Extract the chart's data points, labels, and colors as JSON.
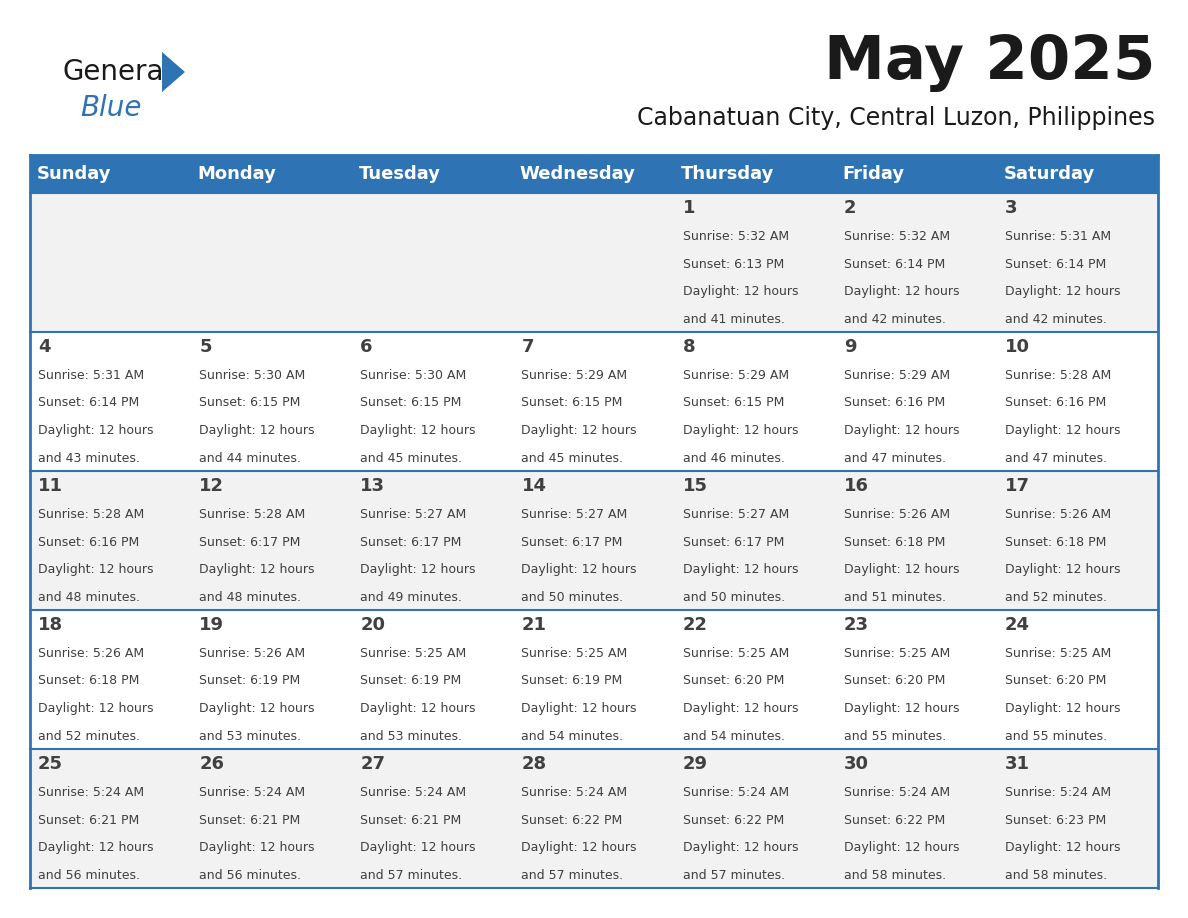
{
  "title": "May 2025",
  "subtitle": "Cabanatuan City, Central Luzon, Philippines",
  "header_bg": "#2E74B5",
  "header_text_color": "#FFFFFF",
  "day_names": [
    "Sunday",
    "Monday",
    "Tuesday",
    "Wednesday",
    "Thursday",
    "Friday",
    "Saturday"
  ],
  "odd_row_bg": "#F2F2F2",
  "even_row_bg": "#FFFFFF",
  "cell_text_color": "#404040",
  "grid_color": "#2E74B5",
  "title_color": "#1A1A1A",
  "subtitle_color": "#1A1A1A",
  "logo_general_color": "#1A1A1A",
  "logo_blue_color": "#2E74B5",
  "days_data": [
    {
      "day": 1,
      "col": 4,
      "row": 0,
      "sunrise": "5:32 AM",
      "sunset": "6:13 PM",
      "daylight_hours": 12,
      "daylight_minutes": 41
    },
    {
      "day": 2,
      "col": 5,
      "row": 0,
      "sunrise": "5:32 AM",
      "sunset": "6:14 PM",
      "daylight_hours": 12,
      "daylight_minutes": 42
    },
    {
      "day": 3,
      "col": 6,
      "row": 0,
      "sunrise": "5:31 AM",
      "sunset": "6:14 PM",
      "daylight_hours": 12,
      "daylight_minutes": 42
    },
    {
      "day": 4,
      "col": 0,
      "row": 1,
      "sunrise": "5:31 AM",
      "sunset": "6:14 PM",
      "daylight_hours": 12,
      "daylight_minutes": 43
    },
    {
      "day": 5,
      "col": 1,
      "row": 1,
      "sunrise": "5:30 AM",
      "sunset": "6:15 PM",
      "daylight_hours": 12,
      "daylight_minutes": 44
    },
    {
      "day": 6,
      "col": 2,
      "row": 1,
      "sunrise": "5:30 AM",
      "sunset": "6:15 PM",
      "daylight_hours": 12,
      "daylight_minutes": 45
    },
    {
      "day": 7,
      "col": 3,
      "row": 1,
      "sunrise": "5:29 AM",
      "sunset": "6:15 PM",
      "daylight_hours": 12,
      "daylight_minutes": 45
    },
    {
      "day": 8,
      "col": 4,
      "row": 1,
      "sunrise": "5:29 AM",
      "sunset": "6:15 PM",
      "daylight_hours": 12,
      "daylight_minutes": 46
    },
    {
      "day": 9,
      "col": 5,
      "row": 1,
      "sunrise": "5:29 AM",
      "sunset": "6:16 PM",
      "daylight_hours": 12,
      "daylight_minutes": 47
    },
    {
      "day": 10,
      "col": 6,
      "row": 1,
      "sunrise": "5:28 AM",
      "sunset": "6:16 PM",
      "daylight_hours": 12,
      "daylight_minutes": 47
    },
    {
      "day": 11,
      "col": 0,
      "row": 2,
      "sunrise": "5:28 AM",
      "sunset": "6:16 PM",
      "daylight_hours": 12,
      "daylight_minutes": 48
    },
    {
      "day": 12,
      "col": 1,
      "row": 2,
      "sunrise": "5:28 AM",
      "sunset": "6:17 PM",
      "daylight_hours": 12,
      "daylight_minutes": 48
    },
    {
      "day": 13,
      "col": 2,
      "row": 2,
      "sunrise": "5:27 AM",
      "sunset": "6:17 PM",
      "daylight_hours": 12,
      "daylight_minutes": 49
    },
    {
      "day": 14,
      "col": 3,
      "row": 2,
      "sunrise": "5:27 AM",
      "sunset": "6:17 PM",
      "daylight_hours": 12,
      "daylight_minutes": 50
    },
    {
      "day": 15,
      "col": 4,
      "row": 2,
      "sunrise": "5:27 AM",
      "sunset": "6:17 PM",
      "daylight_hours": 12,
      "daylight_minutes": 50
    },
    {
      "day": 16,
      "col": 5,
      "row": 2,
      "sunrise": "5:26 AM",
      "sunset": "6:18 PM",
      "daylight_hours": 12,
      "daylight_minutes": 51
    },
    {
      "day": 17,
      "col": 6,
      "row": 2,
      "sunrise": "5:26 AM",
      "sunset": "6:18 PM",
      "daylight_hours": 12,
      "daylight_minutes": 52
    },
    {
      "day": 18,
      "col": 0,
      "row": 3,
      "sunrise": "5:26 AM",
      "sunset": "6:18 PM",
      "daylight_hours": 12,
      "daylight_minutes": 52
    },
    {
      "day": 19,
      "col": 1,
      "row": 3,
      "sunrise": "5:26 AM",
      "sunset": "6:19 PM",
      "daylight_hours": 12,
      "daylight_minutes": 53
    },
    {
      "day": 20,
      "col": 2,
      "row": 3,
      "sunrise": "5:25 AM",
      "sunset": "6:19 PM",
      "daylight_hours": 12,
      "daylight_minutes": 53
    },
    {
      "day": 21,
      "col": 3,
      "row": 3,
      "sunrise": "5:25 AM",
      "sunset": "6:19 PM",
      "daylight_hours": 12,
      "daylight_minutes": 54
    },
    {
      "day": 22,
      "col": 4,
      "row": 3,
      "sunrise": "5:25 AM",
      "sunset": "6:20 PM",
      "daylight_hours": 12,
      "daylight_minutes": 54
    },
    {
      "day": 23,
      "col": 5,
      "row": 3,
      "sunrise": "5:25 AM",
      "sunset": "6:20 PM",
      "daylight_hours": 12,
      "daylight_minutes": 55
    },
    {
      "day": 24,
      "col": 6,
      "row": 3,
      "sunrise": "5:25 AM",
      "sunset": "6:20 PM",
      "daylight_hours": 12,
      "daylight_minutes": 55
    },
    {
      "day": 25,
      "col": 0,
      "row": 4,
      "sunrise": "5:24 AM",
      "sunset": "6:21 PM",
      "daylight_hours": 12,
      "daylight_minutes": 56
    },
    {
      "day": 26,
      "col": 1,
      "row": 4,
      "sunrise": "5:24 AM",
      "sunset": "6:21 PM",
      "daylight_hours": 12,
      "daylight_minutes": 56
    },
    {
      "day": 27,
      "col": 2,
      "row": 4,
      "sunrise": "5:24 AM",
      "sunset": "6:21 PM",
      "daylight_hours": 12,
      "daylight_minutes": 57
    },
    {
      "day": 28,
      "col": 3,
      "row": 4,
      "sunrise": "5:24 AM",
      "sunset": "6:22 PM",
      "daylight_hours": 12,
      "daylight_minutes": 57
    },
    {
      "day": 29,
      "col": 4,
      "row": 4,
      "sunrise": "5:24 AM",
      "sunset": "6:22 PM",
      "daylight_hours": 12,
      "daylight_minutes": 57
    },
    {
      "day": 30,
      "col": 5,
      "row": 4,
      "sunrise": "5:24 AM",
      "sunset": "6:22 PM",
      "daylight_hours": 12,
      "daylight_minutes": 58
    },
    {
      "day": 31,
      "col": 6,
      "row": 4,
      "sunrise": "5:24 AM",
      "sunset": "6:23 PM",
      "daylight_hours": 12,
      "daylight_minutes": 58
    }
  ]
}
